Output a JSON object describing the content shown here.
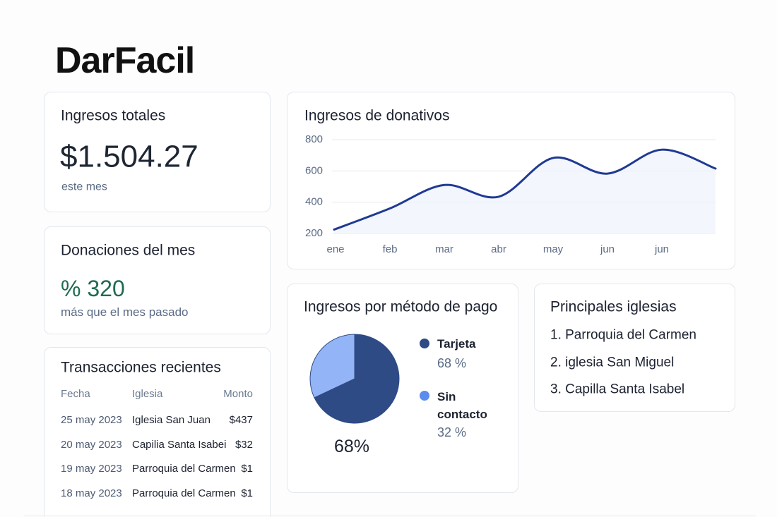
{
  "logo": "DarFacil",
  "total_card": {
    "title": "Ingresos totales",
    "amount": "$1.504.27",
    "caption": "este mes"
  },
  "donations_card": {
    "title": "Donaciones del mes",
    "amount": "% 320",
    "caption": "más que el mes pasado"
  },
  "transactions": {
    "title": "Transacciones recientes",
    "columns": [
      "Fecha",
      "Iglesia",
      "Monto"
    ],
    "rows": [
      [
        "25 may 2023",
        "Iglesia San Juan",
        "$437"
      ],
      [
        "20 may 2023",
        "Capilia Santa Isabei",
        "$32"
      ],
      [
        "19 may 2023",
        "Parroquia del Carmen",
        "$1"
      ],
      [
        "18 may 2023",
        "Parroquia del Carmen",
        "$1"
      ]
    ]
  },
  "churches": {
    "title": "Principales iglesias",
    "items": [
      "1. Parroquia del Carmen",
      "2. iglesia San Miguel",
      "3. Capilla Santa Isabel"
    ]
  },
  "chart_data": [
    {
      "type": "line",
      "title": "Ingresos de donativos",
      "categories": [
        "ene",
        "feb",
        "mar",
        "abr",
        "may",
        "jun",
        "jun",
        null
      ],
      "values": [
        225,
        360,
        510,
        435,
        683,
        583,
        736,
        615
      ],
      "color": "#1f3a93",
      "ylim": [
        200,
        800
      ],
      "yticks": [
        200,
        400,
        600,
        800
      ],
      "grid": true
    },
    {
      "type": "pie",
      "title": "Ingresos por método de pago",
      "categories": [
        "Tarjeta",
        "Sin contacto"
      ],
      "values": [
        68,
        32
      ],
      "value_labels": [
        "68 %",
        "32 %"
      ],
      "colors": [
        "#2f4b85",
        "#93b4f7"
      ],
      "center_label": "68%"
    }
  ]
}
